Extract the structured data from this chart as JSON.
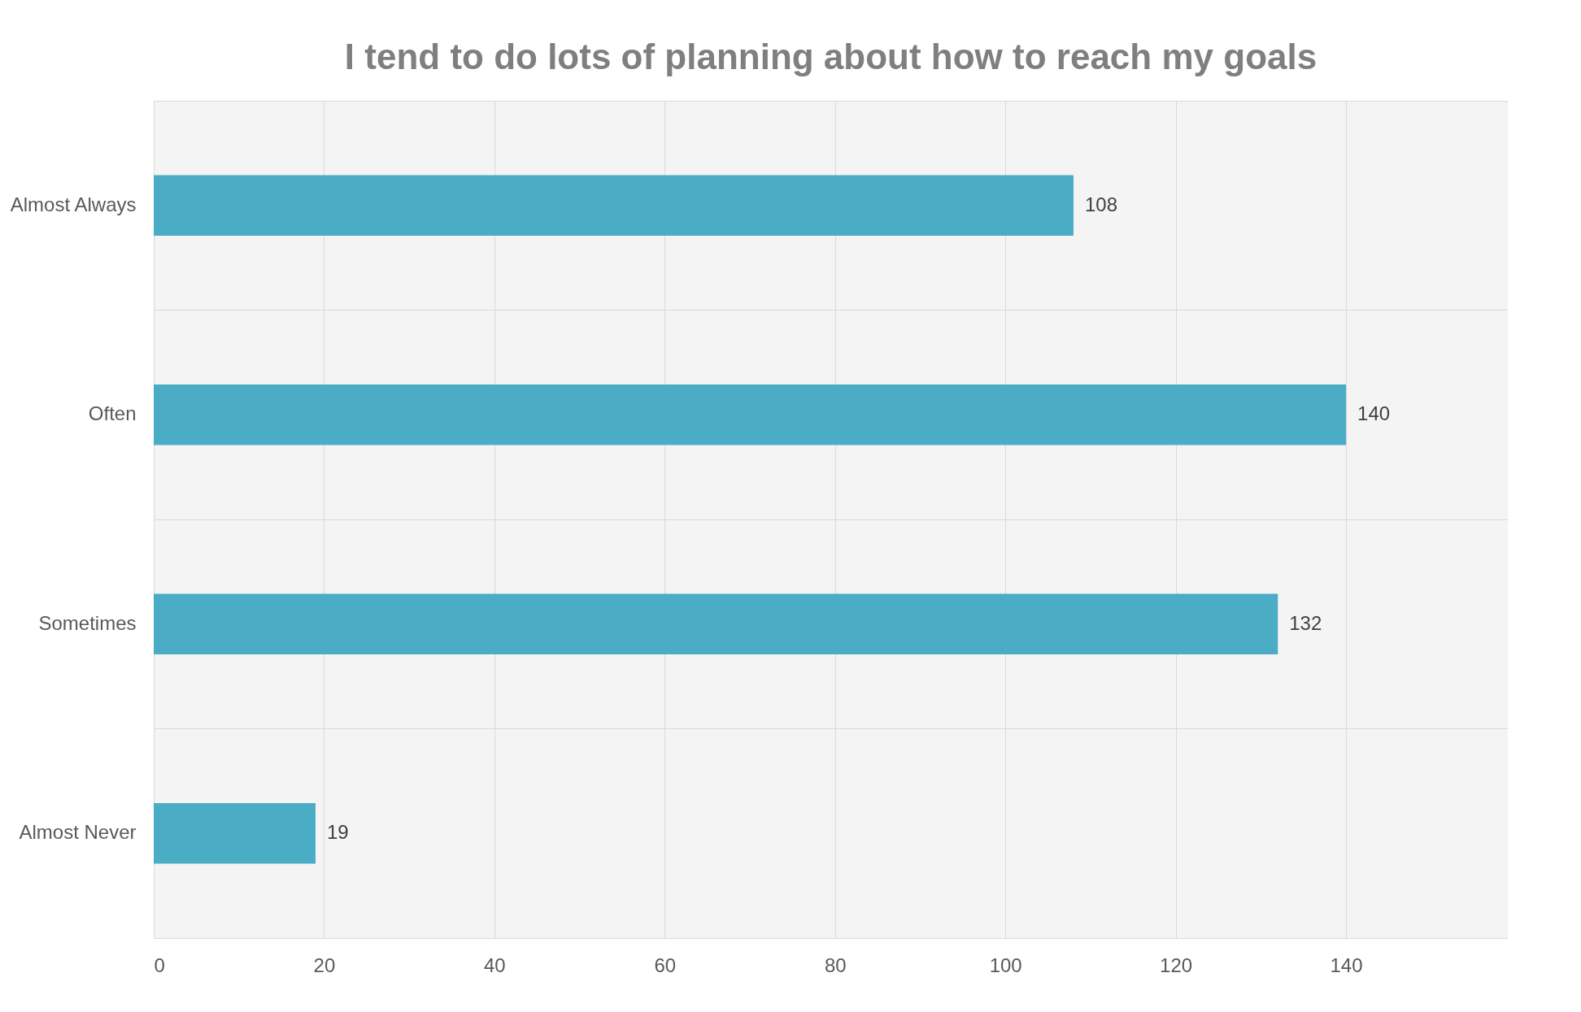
{
  "chart_data": {
    "type": "bar",
    "orientation": "horizontal",
    "title": "I tend to do lots of planning about how to reach my goals",
    "categories": [
      "Almost Always",
      "Often",
      "Sometimes",
      "Almost Never"
    ],
    "values": [
      108,
      140,
      132,
      19
    ],
    "color": "#4bacc6",
    "xlim": [
      0,
      159
    ],
    "xticks": [
      0,
      20,
      40,
      60,
      80,
      100,
      120,
      140
    ],
    "grid": true,
    "data_labels": true
  }
}
